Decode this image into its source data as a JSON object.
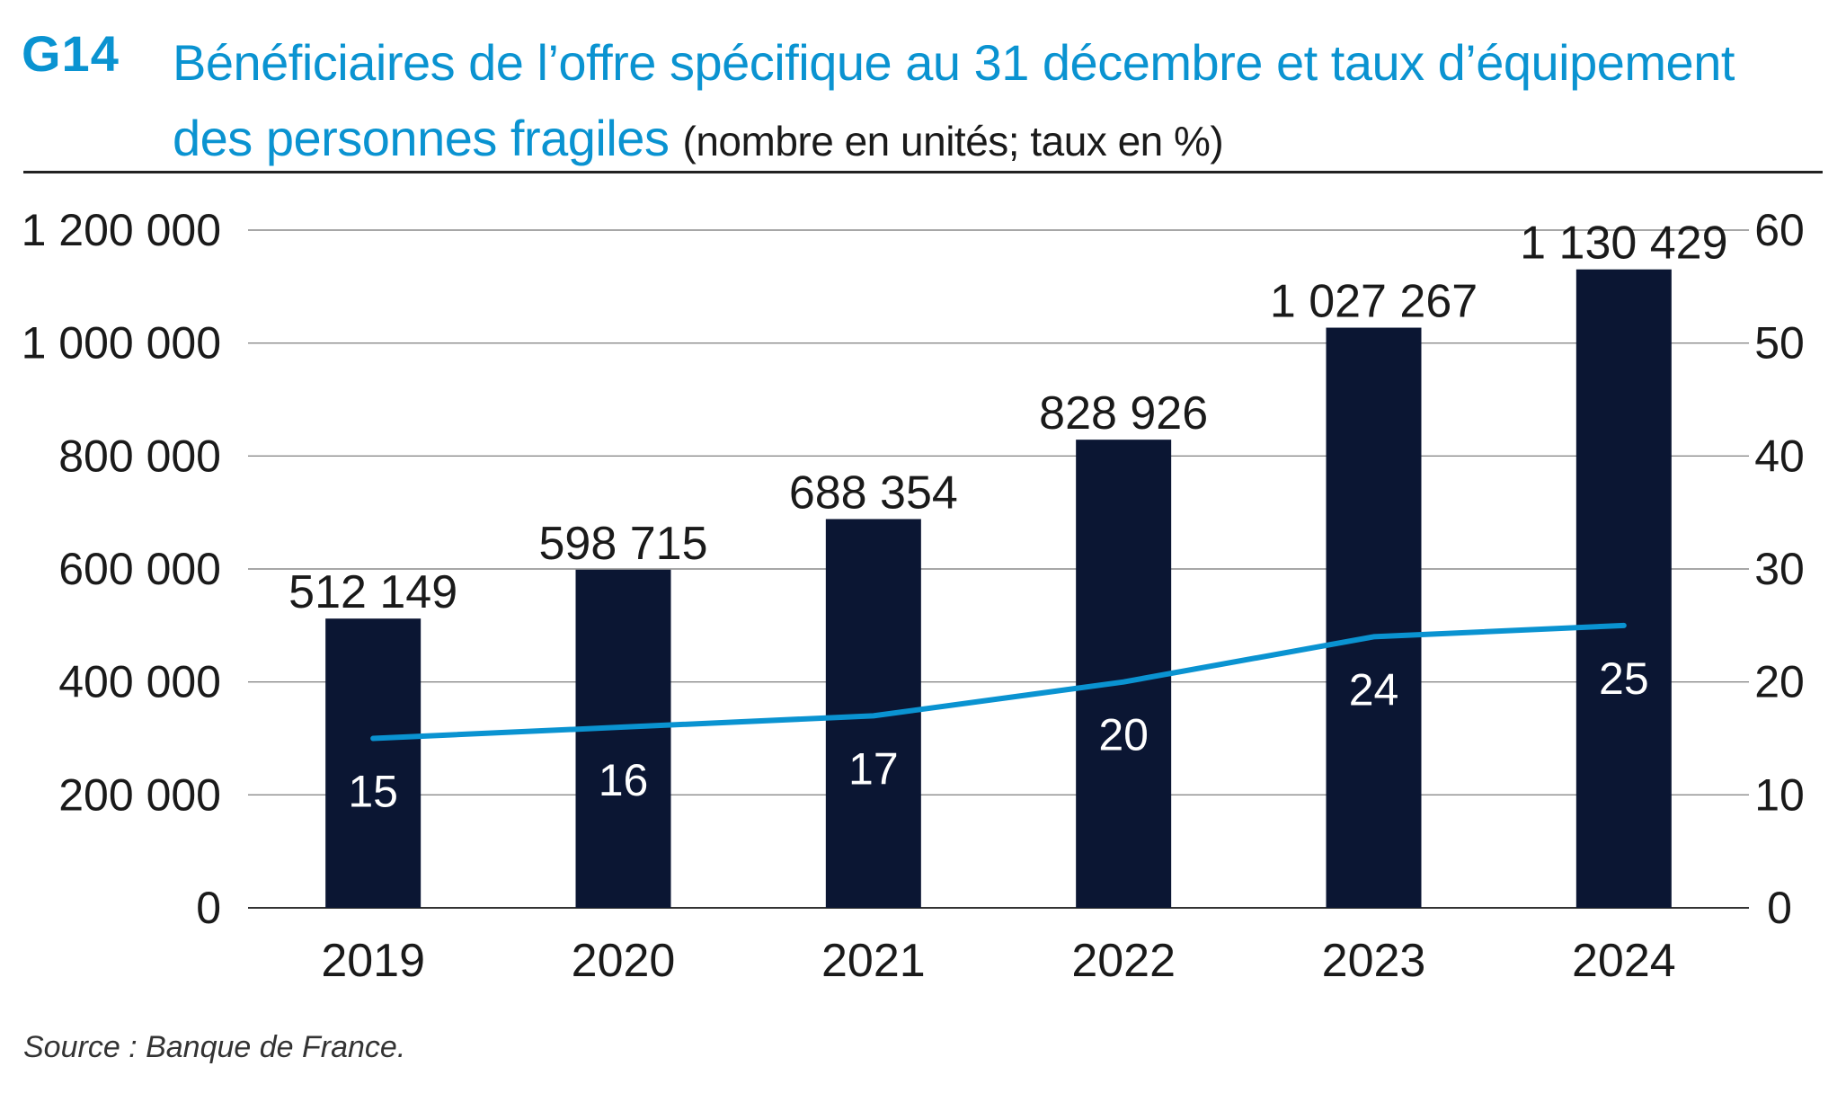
{
  "header": {
    "code": "G14",
    "title": "Bénéficiaires de l’offre spécifique au 31 décembre et taux d’équipement des personnes fragiles",
    "unit": "(nombre en unités; taux en %)"
  },
  "source": "Source : Banque de France.",
  "colors": {
    "accent": "#0a93d1",
    "bar": "#0b1633",
    "line": "#0a93d1",
    "grid": "#8a8a8a",
    "text": "#1a1a1a"
  },
  "chart_data": {
    "type": "bar",
    "categories": [
      "2019",
      "2020",
      "2021",
      "2022",
      "2023",
      "2024"
    ],
    "series": [
      {
        "kind": "bar",
        "axis": "left",
        "values": [
          512149,
          598715,
          688354,
          828926,
          1027267,
          1130429
        ],
        "labels": [
          "512 149",
          "598 715",
          "688 354",
          "828 926",
          "1 027 267",
          "1 130 429"
        ]
      },
      {
        "kind": "line",
        "axis": "right",
        "values": [
          15,
          16,
          17,
          20,
          24,
          25
        ],
        "labels": [
          "15",
          "16",
          "17",
          "20",
          "24",
          "25"
        ]
      }
    ],
    "y_left": {
      "ylim": [
        0,
        1200000
      ],
      "ticks": [
        0,
        200000,
        400000,
        600000,
        800000,
        1000000,
        1200000
      ],
      "tick_labels": [
        "0",
        "200 000",
        "400 000",
        "600 000",
        "800 000",
        "1 000 000",
        "1 200 000"
      ]
    },
    "y_right": {
      "ylim": [
        0,
        60
      ],
      "ticks": [
        0,
        10,
        20,
        30,
        40,
        50,
        60
      ],
      "tick_labels": [
        "0",
        "10",
        "20",
        "30",
        "40",
        "50",
        "60"
      ]
    },
    "grid": true,
    "legend": "none"
  }
}
